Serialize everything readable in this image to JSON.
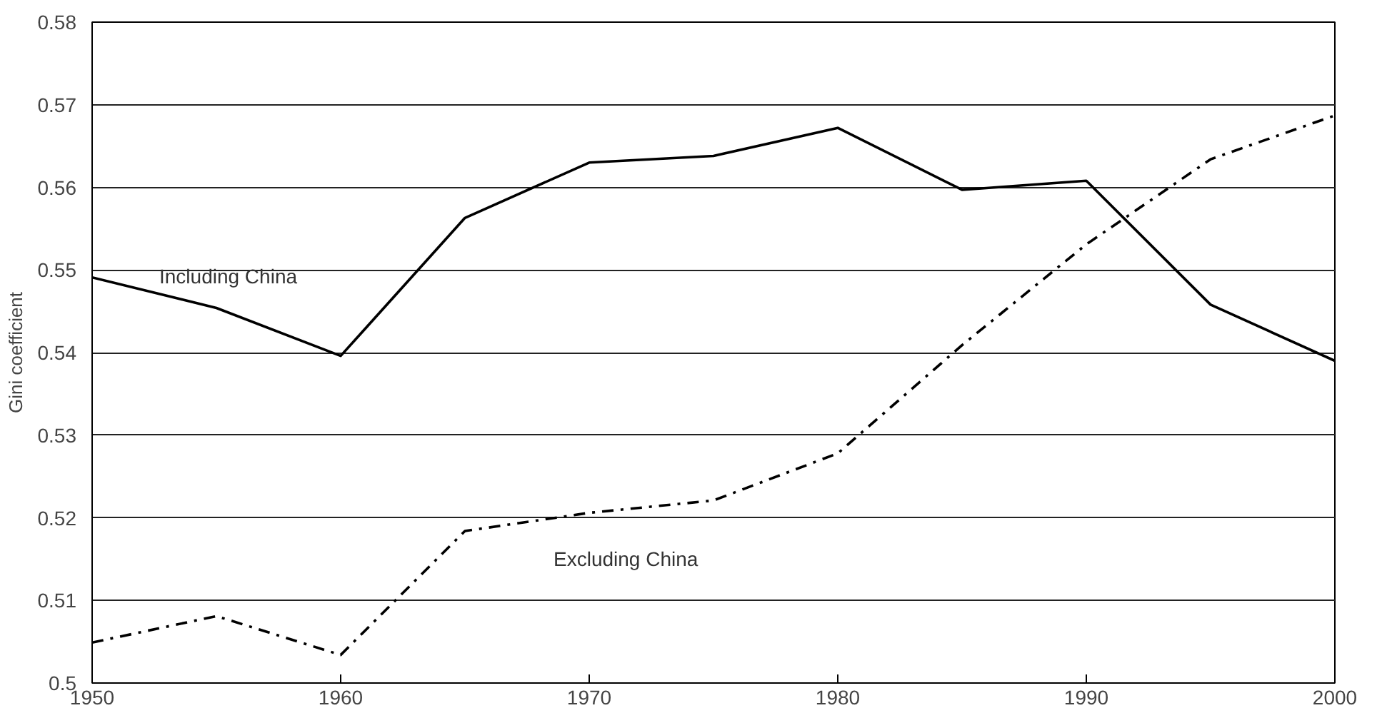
{
  "chart_data": {
    "type": "line",
    "ylabel": "Gini coefficient",
    "x": [
      1950,
      1955,
      1960,
      1965,
      1970,
      1975,
      1980,
      1985,
      1990,
      1995,
      2000
    ],
    "series": [
      {
        "name": "Including China",
        "color": "#000000",
        "line_style": "solid",
        "values": [
          0.5491,
          0.5454,
          0.5396,
          0.5563,
          0.563,
          0.5638,
          0.5672,
          0.5597,
          0.5608,
          0.5458,
          0.539
        ]
      },
      {
        "name": "Excluding China",
        "color": "#000000",
        "line_style": "dashed",
        "values": [
          0.5049,
          0.5081,
          0.5034,
          0.5184,
          0.5206,
          0.5221,
          0.5278,
          0.5409,
          0.5531,
          0.5634,
          0.5687
        ]
      }
    ],
    "xlim": [
      1950,
      2000
    ],
    "xticks": [
      1950,
      1960,
      1970,
      1980,
      1990,
      2000
    ],
    "ylim": [
      0.5,
      0.58
    ],
    "yticks": [
      0.5,
      0.51,
      0.52,
      0.53,
      0.54,
      0.55,
      0.56,
      0.57,
      0.58
    ],
    "grid": "y",
    "marker": "none"
  }
}
